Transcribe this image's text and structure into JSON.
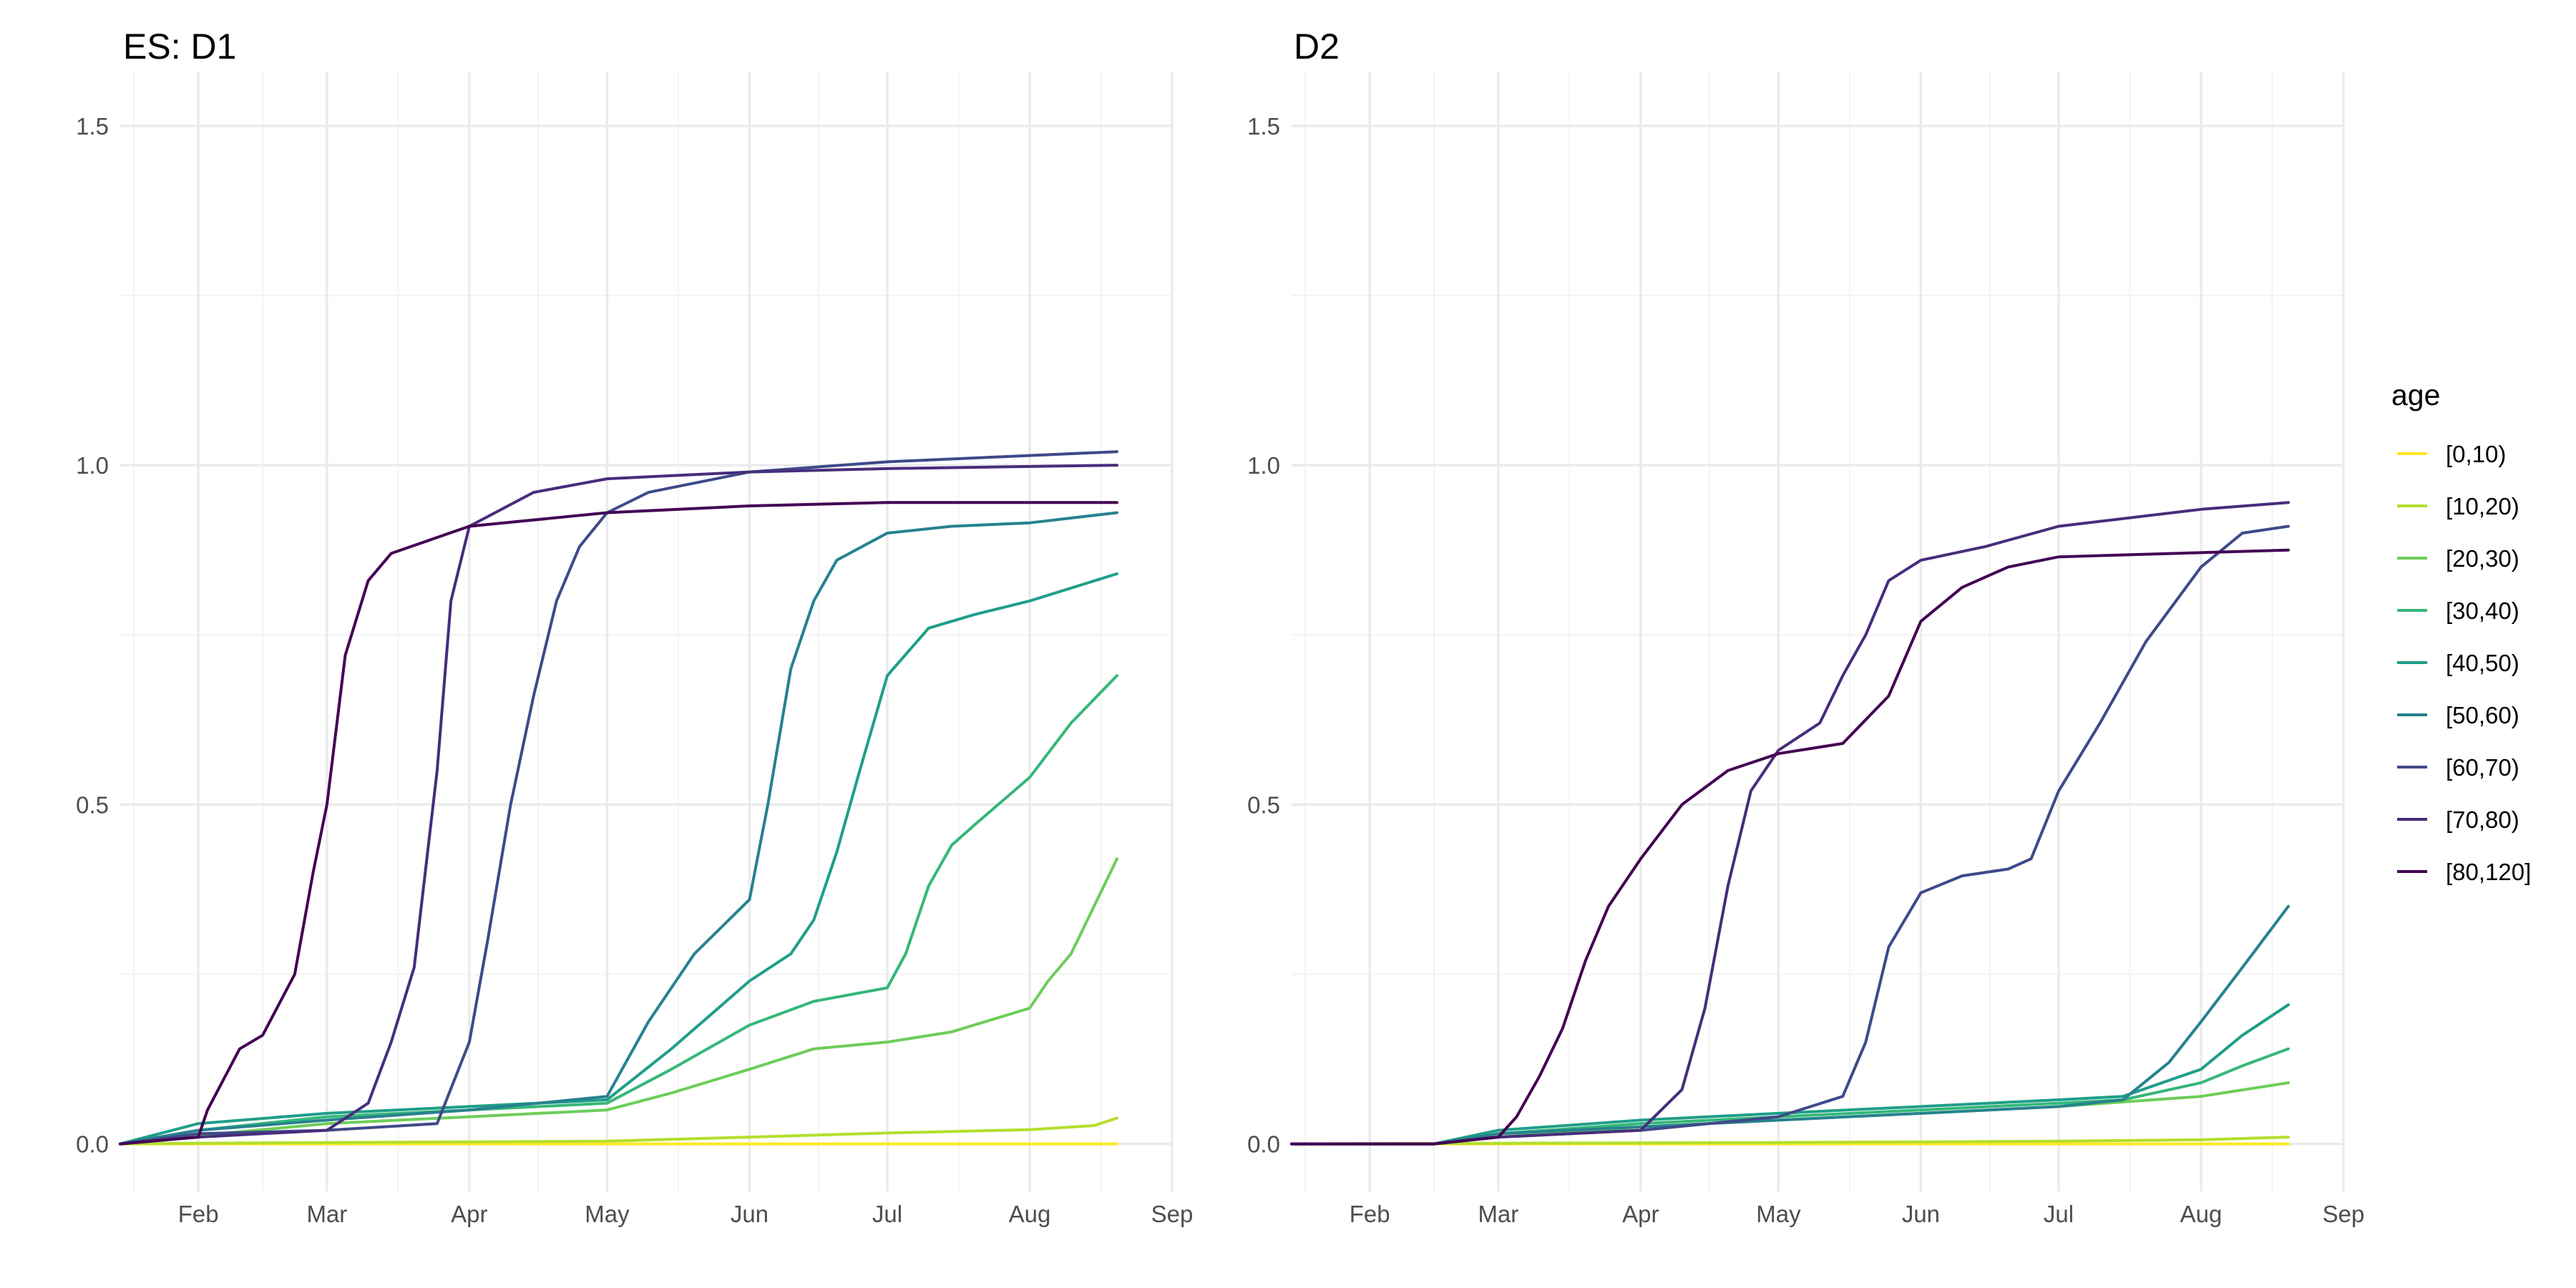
{
  "chart_data": [
    {
      "type": "line",
      "title": "ES: D1",
      "xlabel": "",
      "ylabel": "",
      "x_range": [
        "2021-01-15",
        "2021-09-01"
      ],
      "ylim": [
        -0.07,
        1.58
      ],
      "x_ticks": [
        {
          "date": "2021-02-01",
          "label": "Feb"
        },
        {
          "date": "2021-03-01",
          "label": "Mar"
        },
        {
          "date": "2021-04-01",
          "label": "Apr"
        },
        {
          "date": "2021-05-01",
          "label": "May"
        },
        {
          "date": "2021-06-01",
          "label": "Jun"
        },
        {
          "date": "2021-07-01",
          "label": "Jul"
        },
        {
          "date": "2021-08-01",
          "label": "Aug"
        },
        {
          "date": "2021-09-01",
          "label": "Sep"
        }
      ],
      "y_ticks": [
        {
          "value": 0,
          "label": "0.0"
        },
        {
          "value": 0.5,
          "label": "0.5"
        },
        {
          "value": 1,
          "label": "1.0"
        },
        {
          "value": 1.5,
          "label": "1.5"
        }
      ],
      "grid": true,
      "series": [
        {
          "name": "[0,10)",
          "color": "#FDE725",
          "x": [
            "2021-01-15",
            "2021-03-01",
            "2021-05-01",
            "2021-07-01",
            "2021-08-20"
          ],
          "y": [
            0,
            0,
            0,
            0,
            0
          ]
        },
        {
          "name": "[10,20)",
          "color": "#B4DE2C",
          "x": [
            "2021-01-15",
            "2021-02-01",
            "2021-03-01",
            "2021-04-01",
            "2021-05-01",
            "2021-06-01",
            "2021-07-01",
            "2021-08-01",
            "2021-08-15",
            "2021-08-20"
          ],
          "y": [
            0,
            0.001,
            0.002,
            0.003,
            0.004,
            0.01,
            0.016,
            0.021,
            0.027,
            0.038
          ]
        },
        {
          "name": "[20,30)",
          "color": "#6DCD59",
          "x": [
            "2021-01-15",
            "2021-02-01",
            "2021-03-01",
            "2021-04-01",
            "2021-05-01",
            "2021-05-15",
            "2021-06-01",
            "2021-06-15",
            "2021-07-01",
            "2021-07-15",
            "2021-08-01",
            "2021-08-05",
            "2021-08-10",
            "2021-08-15",
            "2021-08-20"
          ],
          "y": [
            0,
            0.012,
            0.03,
            0.04,
            0.05,
            0.075,
            0.11,
            0.14,
            0.15,
            0.165,
            0.2,
            0.24,
            0.28,
            0.35,
            0.42
          ]
        },
        {
          "name": "[30,40)",
          "color": "#35B779",
          "x": [
            "2021-01-15",
            "2021-02-01",
            "2021-03-01",
            "2021-04-01",
            "2021-05-01",
            "2021-05-15",
            "2021-06-01",
            "2021-06-15",
            "2021-07-01",
            "2021-07-05",
            "2021-07-10",
            "2021-07-15",
            "2021-07-20",
            "2021-08-01",
            "2021-08-10",
            "2021-08-20"
          ],
          "y": [
            0,
            0.02,
            0.04,
            0.05,
            0.06,
            0.11,
            0.175,
            0.21,
            0.23,
            0.28,
            0.38,
            0.44,
            0.47,
            0.54,
            0.62,
            0.69
          ]
        },
        {
          "name": "[40,50)",
          "color": "#1F9E89",
          "x": [
            "2021-01-15",
            "2021-02-01",
            "2021-03-01",
            "2021-04-01",
            "2021-05-01",
            "2021-05-15",
            "2021-06-01",
            "2021-06-10",
            "2021-06-15",
            "2021-06-20",
            "2021-06-25",
            "2021-07-01",
            "2021-07-10",
            "2021-07-20",
            "2021-08-01",
            "2021-08-20"
          ],
          "y": [
            0,
            0.03,
            0.045,
            0.055,
            0.065,
            0.14,
            0.24,
            0.28,
            0.33,
            0.43,
            0.55,
            0.69,
            0.76,
            0.78,
            0.8,
            0.84
          ]
        },
        {
          "name": "[50,60)",
          "color": "#26828E",
          "x": [
            "2021-01-15",
            "2021-02-01",
            "2021-03-01",
            "2021-04-01",
            "2021-05-01",
            "2021-05-10",
            "2021-05-20",
            "2021-06-01",
            "2021-06-05",
            "2021-06-10",
            "2021-06-15",
            "2021-06-20",
            "2021-07-01",
            "2021-07-15",
            "2021-08-01",
            "2021-08-20"
          ],
          "y": [
            0,
            0.02,
            0.035,
            0.05,
            0.07,
            0.18,
            0.28,
            0.36,
            0.5,
            0.7,
            0.8,
            0.86,
            0.9,
            0.91,
            0.915,
            0.93
          ]
        },
        {
          "name": "[60,70)",
          "color": "#3E4A89",
          "x": [
            "2021-01-15",
            "2021-02-01",
            "2021-03-01",
            "2021-03-25",
            "2021-04-01",
            "2021-04-05",
            "2021-04-10",
            "2021-04-15",
            "2021-04-20",
            "2021-04-25",
            "2021-05-01",
            "2021-05-10",
            "2021-06-01",
            "2021-07-01",
            "2021-08-20"
          ],
          "y": [
            0,
            0.015,
            0.02,
            0.03,
            0.15,
            0.3,
            0.5,
            0.66,
            0.8,
            0.88,
            0.93,
            0.96,
            0.99,
            1.005,
            1.02
          ]
        },
        {
          "name": "[70,80)",
          "color": "#472D7B",
          "x": [
            "2021-01-15",
            "2021-02-01",
            "2021-03-01",
            "2021-03-10",
            "2021-03-15",
            "2021-03-20",
            "2021-03-25",
            "2021-03-28",
            "2021-04-01",
            "2021-04-15",
            "2021-05-01",
            "2021-06-01",
            "2021-07-01",
            "2021-08-20"
          ],
          "y": [
            0,
            0.01,
            0.02,
            0.06,
            0.15,
            0.26,
            0.55,
            0.8,
            0.91,
            0.96,
            0.98,
            0.99,
            0.995,
            1.0
          ]
        },
        {
          "name": "[80,120]",
          "color": "#440154",
          "x": [
            "2021-01-15",
            "2021-02-01",
            "2021-02-03",
            "2021-02-10",
            "2021-02-15",
            "2021-02-22",
            "2021-02-26",
            "2021-03-01",
            "2021-03-05",
            "2021-03-10",
            "2021-03-15",
            "2021-04-01",
            "2021-05-01",
            "2021-06-01",
            "2021-07-01",
            "2021-08-20"
          ],
          "y": [
            0,
            0.01,
            0.05,
            0.14,
            0.16,
            0.25,
            0.4,
            0.5,
            0.72,
            0.83,
            0.87,
            0.91,
            0.93,
            0.94,
            0.945,
            0.945
          ]
        }
      ]
    },
    {
      "type": "line",
      "title": "D2",
      "xlabel": "",
      "ylabel": "",
      "x_range": [
        "2021-01-15",
        "2021-09-01"
      ],
      "ylim": [
        -0.07,
        1.58
      ],
      "x_ticks": [
        {
          "date": "2021-02-01",
          "label": "Feb"
        },
        {
          "date": "2021-03-01",
          "label": "Mar"
        },
        {
          "date": "2021-04-01",
          "label": "Apr"
        },
        {
          "date": "2021-05-01",
          "label": "May"
        },
        {
          "date": "2021-06-01",
          "label": "Jun"
        },
        {
          "date": "2021-07-01",
          "label": "Jul"
        },
        {
          "date": "2021-08-01",
          "label": "Aug"
        },
        {
          "date": "2021-09-01",
          "label": "Sep"
        }
      ],
      "y_ticks": [
        {
          "value": 0,
          "label": "0.0"
        },
        {
          "value": 0.5,
          "label": "0.5"
        },
        {
          "value": 1,
          "label": "1.0"
        },
        {
          "value": 1.5,
          "label": "1.5"
        }
      ],
      "grid": true,
      "series": [
        {
          "name": "[0,10)",
          "color": "#FDE725",
          "x": [
            "2021-01-15",
            "2021-04-01",
            "2021-06-01",
            "2021-08-20"
          ],
          "y": [
            0,
            0,
            0,
            0
          ]
        },
        {
          "name": "[10,20)",
          "color": "#B4DE2C",
          "x": [
            "2021-01-15",
            "2021-03-01",
            "2021-05-01",
            "2021-07-01",
            "2021-08-01",
            "2021-08-20"
          ],
          "y": [
            0,
            0.001,
            0.002,
            0.004,
            0.006,
            0.01
          ]
        },
        {
          "name": "[20,30)",
          "color": "#6DCD59",
          "x": [
            "2021-01-15",
            "2021-02-15",
            "2021-03-01",
            "2021-04-01",
            "2021-05-01",
            "2021-06-01",
            "2021-07-01",
            "2021-08-01",
            "2021-08-20"
          ],
          "y": [
            0,
            0,
            0.01,
            0.025,
            0.035,
            0.045,
            0.055,
            0.07,
            0.09
          ]
        },
        {
          "name": "[30,40)",
          "color": "#35B779",
          "x": [
            "2021-01-15",
            "2021-02-15",
            "2021-03-01",
            "2021-04-01",
            "2021-05-01",
            "2021-06-01",
            "2021-07-01",
            "2021-07-15",
            "2021-08-01",
            "2021-08-10",
            "2021-08-20"
          ],
          "y": [
            0,
            0,
            0.015,
            0.03,
            0.04,
            0.05,
            0.06,
            0.065,
            0.09,
            0.115,
            0.14
          ]
        },
        {
          "name": "[40,50)",
          "color": "#1F9E89",
          "x": [
            "2021-01-15",
            "2021-02-15",
            "2021-03-01",
            "2021-04-01",
            "2021-05-01",
            "2021-06-01",
            "2021-07-01",
            "2021-07-15",
            "2021-08-01",
            "2021-08-10",
            "2021-08-20"
          ],
          "y": [
            0,
            0,
            0.02,
            0.035,
            0.045,
            0.055,
            0.065,
            0.07,
            0.11,
            0.16,
            0.205
          ]
        },
        {
          "name": "[50,60)",
          "color": "#26828E",
          "x": [
            "2021-01-15",
            "2021-02-15",
            "2021-03-01",
            "2021-04-01",
            "2021-05-01",
            "2021-06-01",
            "2021-07-01",
            "2021-07-15",
            "2021-07-25",
            "2021-08-01",
            "2021-08-10",
            "2021-08-20"
          ],
          "y": [
            0,
            0,
            0.015,
            0.025,
            0.035,
            0.045,
            0.055,
            0.065,
            0.12,
            0.18,
            0.26,
            0.35
          ]
        },
        {
          "name": "[60,70)",
          "color": "#3E4A89",
          "x": [
            "2021-01-15",
            "2021-02-15",
            "2021-03-01",
            "2021-04-01",
            "2021-05-01",
            "2021-05-15",
            "2021-05-20",
            "2021-05-25",
            "2021-06-01",
            "2021-06-10",
            "2021-06-20",
            "2021-06-25",
            "2021-07-01",
            "2021-07-10",
            "2021-07-20",
            "2021-08-01",
            "2021-08-10",
            "2021-08-20"
          ],
          "y": [
            0,
            0,
            0.01,
            0.02,
            0.04,
            0.07,
            0.15,
            0.29,
            0.37,
            0.395,
            0.405,
            0.42,
            0.52,
            0.62,
            0.74,
            0.85,
            0.9,
            0.91
          ]
        },
        {
          "name": "[70,80)",
          "color": "#472D7B",
          "x": [
            "2021-01-15",
            "2021-02-15",
            "2021-03-01",
            "2021-04-01",
            "2021-04-10",
            "2021-04-15",
            "2021-04-20",
            "2021-04-25",
            "2021-05-01",
            "2021-05-10",
            "2021-05-15",
            "2021-05-20",
            "2021-05-25",
            "2021-06-01",
            "2021-06-15",
            "2021-07-01",
            "2021-08-01",
            "2021-08-20"
          ],
          "y": [
            0,
            0,
            0.01,
            0.02,
            0.08,
            0.2,
            0.38,
            0.52,
            0.58,
            0.62,
            0.69,
            0.75,
            0.83,
            0.86,
            0.88,
            0.91,
            0.935,
            0.945
          ]
        },
        {
          "name": "[80,120]",
          "color": "#440154",
          "x": [
            "2021-01-15",
            "2021-02-15",
            "2021-03-01",
            "2021-03-05",
            "2021-03-10",
            "2021-03-15",
            "2021-03-20",
            "2021-03-25",
            "2021-04-01",
            "2021-04-10",
            "2021-04-20",
            "2021-05-01",
            "2021-05-15",
            "2021-05-25",
            "2021-06-01",
            "2021-06-10",
            "2021-06-20",
            "2021-07-01",
            "2021-08-20"
          ],
          "y": [
            0,
            0,
            0.01,
            0.04,
            0.1,
            0.17,
            0.27,
            0.35,
            0.42,
            0.5,
            0.55,
            0.575,
            0.59,
            0.66,
            0.77,
            0.82,
            0.85,
            0.865,
            0.875
          ]
        }
      ]
    }
  ],
  "legend": {
    "title": "age",
    "position": "right",
    "items": [
      {
        "label": "[0,10)",
        "color": "#FDE725"
      },
      {
        "label": "[10,20)",
        "color": "#B4DE2C"
      },
      {
        "label": "[20,30)",
        "color": "#6DCD59"
      },
      {
        "label": "[30,40)",
        "color": "#35B779"
      },
      {
        "label": "[40,50)",
        "color": "#1F9E89"
      },
      {
        "label": "[50,60)",
        "color": "#26828E"
      },
      {
        "label": "[60,70)",
        "color": "#3E4A89"
      },
      {
        "label": "[70,80)",
        "color": "#472D7B"
      },
      {
        "label": "[80,120]",
        "color": "#440154"
      }
    ]
  }
}
